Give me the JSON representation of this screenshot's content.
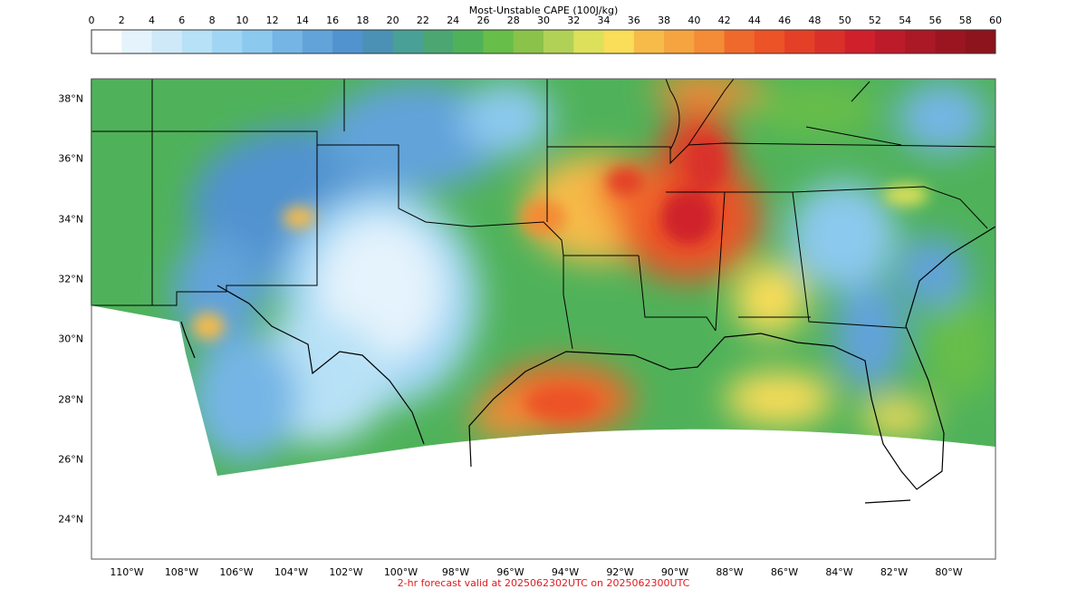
{
  "colorbar": {
    "title": "Most-Unstable CAPE (100J/kg)",
    "ticks": [
      "0",
      "2",
      "4",
      "6",
      "8",
      "10",
      "12",
      "14",
      "16",
      "18",
      "20",
      "22",
      "24",
      "26",
      "28",
      "30",
      "32",
      "34",
      "36",
      "38",
      "40",
      "42",
      "44",
      "46",
      "48",
      "50",
      "52",
      "54",
      "56",
      "58",
      "60"
    ],
    "colors": [
      "#ffffff",
      "#e4f3fc",
      "#cfe9f8",
      "#b7e1f6",
      "#a0d6f4",
      "#8cc9ee",
      "#75b5e5",
      "#62a3da",
      "#5193cf",
      "#4a91b5",
      "#49a096",
      "#4ba672",
      "#4fb25a",
      "#67be48",
      "#8ac24a",
      "#b1d156",
      "#dde05a",
      "#fadd58",
      "#f6bb49",
      "#f5a440",
      "#f48b36",
      "#f0692c",
      "#ec5327",
      "#e34027",
      "#d9302a",
      "#cf202c",
      "#bd1b2a",
      "#ab1826",
      "#9b1521",
      "#8d131c"
    ]
  },
  "map": {
    "lat_labels": [
      "38°N",
      "36°N",
      "34°N",
      "32°N",
      "30°N",
      "28°N",
      "26°N",
      "24°N"
    ],
    "lon_labels": [
      "110°W",
      "108°W",
      "106°W",
      "104°W",
      "102°W",
      "100°W",
      "98°W",
      "96°W",
      "94°W",
      "92°W",
      "90°W",
      "88°W",
      "86°W",
      "84°W",
      "82°W",
      "80°W"
    ]
  },
  "caption": {
    "text": "2-hr forecast valid at 2025062302UTC on 2025062300UTC",
    "color": "#e3191c"
  }
}
